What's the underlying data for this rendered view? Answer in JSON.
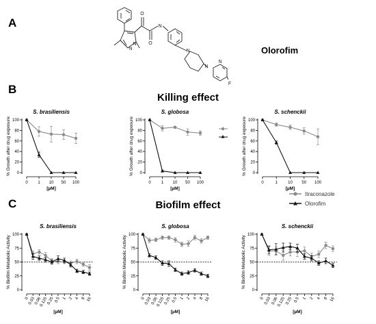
{
  "header": {
    "panel_a_letter": "A",
    "panel_b_letter": "B",
    "panel_c_letter": "C",
    "compound_name": "Olorofim",
    "killing_title": "Killing effect",
    "biofilm_title": "Biofilm effect",
    "molecule_atom_labels": [
      "N",
      "N",
      "O",
      "O",
      "N",
      "N",
      "N",
      "N",
      "F"
    ]
  },
  "colors": {
    "itraconazole": "#8a8a8a",
    "olorofim": "#111111",
    "reference_line": "#000000"
  },
  "legend": {
    "placement": "right, between panels B and C",
    "itraconazole_label": "Itraconazole",
    "olorofim_label": "Olorofim"
  },
  "chart_data": [
    {
      "panel": "killing",
      "type": "line",
      "title": "S. brasiliensis",
      "xlabel": "[µM]",
      "ylabel": "% Growth after drug exposure",
      "categories": [
        "0",
        "1",
        "10",
        "50",
        "100"
      ],
      "ylim": [
        0,
        100
      ],
      "yticks": [
        0,
        20,
        40,
        60,
        80,
        100
      ],
      "grid": false,
      "series": [
        {
          "name": "Itraconazole",
          "values": [
            100,
            78,
            73,
            72,
            65
          ],
          "errors": [
            0,
            9,
            15,
            9,
            10
          ]
        },
        {
          "name": "Olorofim",
          "values": [
            100,
            34,
            0,
            0,
            0
          ],
          "errors": [
            0,
            5,
            0,
            0,
            0
          ]
        }
      ]
    },
    {
      "panel": "killing",
      "type": "line",
      "title": "S. globosa",
      "xlabel": "[µM]",
      "ylabel": "% Growth after drug exposure",
      "categories": [
        "0",
        "1",
        "10",
        "50",
        "100"
      ],
      "ylim": [
        0,
        100
      ],
      "yticks": [
        0,
        20,
        40,
        60,
        80,
        100
      ],
      "grid": false,
      "series": [
        {
          "name": "Itraconazole",
          "values": [
            100,
            84,
            86,
            77,
            75
          ],
          "errors": [
            0,
            5,
            2,
            6,
            4
          ]
        },
        {
          "name": "Olorofim",
          "values": [
            100,
            3,
            0,
            0,
            0
          ],
          "errors": [
            0,
            2,
            0,
            0,
            0
          ]
        }
      ]
    },
    {
      "panel": "killing",
      "type": "line",
      "title": "S. schenckii",
      "xlabel": "[µM]",
      "ylabel": "% Growth after drug exposure",
      "categories": [
        "0",
        "1",
        "10",
        "50",
        "100"
      ],
      "ylim": [
        0,
        100
      ],
      "yticks": [
        0,
        20,
        40,
        60,
        80,
        100
      ],
      "grid": false,
      "series": [
        {
          "name": "Itraconazole",
          "values": [
            100,
            91,
            86,
            79,
            68
          ],
          "errors": [
            0,
            3,
            4,
            6,
            15
          ]
        },
        {
          "name": "Olorofim",
          "values": [
            100,
            57,
            0,
            0,
            0
          ],
          "errors": [
            0,
            3,
            0,
            0,
            0
          ]
        }
      ]
    },
    {
      "panel": "biofilm",
      "type": "line",
      "title": "S. brasiliensis",
      "xlabel": "[µM]",
      "ylabel": "% Biofilm Metabolic Activity",
      "categories": [
        "0",
        "0.03",
        "0.06",
        "0.125",
        "0.25",
        "0.5",
        "1",
        "2",
        "4",
        "8",
        "16"
      ],
      "ylim": [
        0,
        100
      ],
      "yticks": [
        0,
        25,
        50,
        75,
        100
      ],
      "reference_line": 50,
      "grid": false,
      "series": [
        {
          "name": "Itraconazole",
          "values": [
            100,
            65,
            68,
            62,
            52,
            51,
            50,
            48,
            51,
            46,
            40
          ],
          "errors": [
            0,
            5,
            4,
            5,
            4,
            4,
            3,
            4,
            4,
            4,
            5
          ]
        },
        {
          "name": "Olorofim",
          "values": [
            100,
            60,
            57,
            54,
            50,
            56,
            53,
            45,
            34,
            32,
            29
          ],
          "errors": [
            0,
            5,
            4,
            4,
            4,
            5,
            4,
            4,
            3,
            3,
            3
          ]
        }
      ]
    },
    {
      "panel": "biofilm",
      "type": "line",
      "title": "S. globosa",
      "xlabel": "[µM]",
      "ylabel": "% Biofilm Metabolic Activity",
      "categories": [
        "0",
        "0.03",
        "0.06",
        "0.125",
        "0.25",
        "0.5",
        "1",
        "2",
        "4",
        "8",
        "16"
      ],
      "ylim": [
        0,
        100
      ],
      "yticks": [
        0,
        25,
        50,
        75,
        100
      ],
      "reference_line": 50,
      "grid": false,
      "series": [
        {
          "name": "Itraconazole",
          "values": [
            100,
            89,
            90,
            94,
            94,
            90,
            82,
            83,
            94,
            88,
            94
          ],
          "errors": [
            0,
            4,
            3,
            3,
            3,
            4,
            4,
            5,
            4,
            4,
            3
          ]
        },
        {
          "name": "Olorofim",
          "values": [
            100,
            62,
            58,
            48,
            47,
            36,
            29,
            31,
            35,
            29,
            25
          ],
          "errors": [
            0,
            3,
            3,
            4,
            5,
            3,
            3,
            3,
            3,
            3,
            3
          ]
        }
      ]
    },
    {
      "panel": "biofilm",
      "type": "line",
      "title": "S. schenckii",
      "xlabel": "[µM]",
      "ylabel": "% Biofilm Metabolic Activity",
      "categories": [
        "0",
        "0.03",
        "0.06",
        "0.125",
        "0.25",
        "0.5",
        "1",
        "2",
        "4",
        "8",
        "16"
      ],
      "ylim": [
        0,
        100
      ],
      "yticks": [
        0,
        25,
        50,
        75,
        100
      ],
      "reference_line": 50,
      "grid": false,
      "series": [
        {
          "name": "Itraconazole",
          "values": [
            100,
            70,
            70,
            62,
            68,
            68,
            70,
            60,
            64,
            80,
            74
          ],
          "errors": [
            0,
            8,
            7,
            9,
            7,
            8,
            7,
            6,
            6,
            6,
            5
          ]
        },
        {
          "name": "Olorofim",
          "values": [
            100,
            72,
            73,
            76,
            78,
            75,
            60,
            57,
            48,
            52,
            44
          ],
          "errors": [
            0,
            7,
            10,
            8,
            6,
            7,
            5,
            5,
            4,
            5,
            4
          ]
        }
      ]
    }
  ]
}
